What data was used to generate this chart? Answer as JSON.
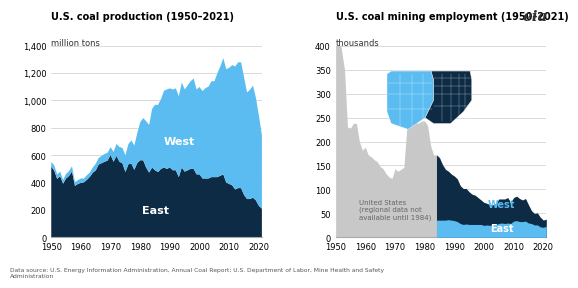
{
  "title1": "U.S. coal production (1950–2021)",
  "ylabel1": "million tons",
  "title2": "U.S. coal mining employment (1950–2021)",
  "ylabel2": "thousands",
  "footnote_normal": "Data source: U.S. Energy Information Administration, ",
  "footnote_italic": "Annual Coal Report",
  "footnote_normal2": "; U.S. Department of Labor, ",
  "footnote_italic2": "Mine Health and Safety",
  "footnote_normal3": "\nAdministration",
  "bg_color": "#ffffff",
  "east_color": "#0d2b45",
  "west_color": "#5abcf0",
  "us_color": "#c8c8c8",
  "years_prod": [
    1950,
    1951,
    1952,
    1953,
    1954,
    1955,
    1956,
    1957,
    1958,
    1959,
    1960,
    1961,
    1962,
    1963,
    1964,
    1965,
    1966,
    1967,
    1968,
    1969,
    1970,
    1971,
    1972,
    1973,
    1974,
    1975,
    1976,
    1977,
    1978,
    1979,
    1980,
    1981,
    1982,
    1983,
    1984,
    1985,
    1986,
    1987,
    1988,
    1989,
    1990,
    1991,
    1992,
    1993,
    1994,
    1995,
    1996,
    1997,
    1998,
    1999,
    2000,
    2001,
    2002,
    2003,
    2004,
    2005,
    2006,
    2007,
    2008,
    2009,
    2010,
    2011,
    2012,
    2013,
    2014,
    2015,
    2016,
    2017,
    2018,
    2019,
    2020,
    2021
  ],
  "east_prod": [
    516,
    488,
    427,
    447,
    392,
    430,
    449,
    481,
    376,
    390,
    398,
    402,
    420,
    442,
    472,
    489,
    532,
    542,
    552,
    561,
    602,
    552,
    595,
    552,
    541,
    477,
    533,
    540,
    493,
    543,
    563,
    563,
    510,
    473,
    510,
    490,
    477,
    500,
    510,
    500,
    510,
    490,
    490,
    440,
    510,
    480,
    490,
    500,
    500,
    460,
    460,
    430,
    430,
    430,
    440,
    440,
    440,
    450,
    460,
    400,
    390,
    380,
    350,
    360,
    360,
    310,
    280,
    280,
    290,
    270,
    230,
    210
  ],
  "west_prod": [
    35,
    38,
    32,
    33,
    28,
    33,
    35,
    38,
    27,
    28,
    32,
    28,
    33,
    32,
    38,
    48,
    48,
    53,
    57,
    57,
    57,
    72,
    87,
    108,
    112,
    122,
    148,
    168,
    178,
    218,
    278,
    308,
    338,
    348,
    428,
    478,
    490,
    510,
    560,
    580,
    578,
    590,
    598,
    590,
    620,
    600,
    620,
    640,
    660,
    620,
    638,
    638,
    660,
    670,
    700,
    700,
    758,
    798,
    848,
    828,
    848,
    878,
    898,
    918,
    918,
    858,
    778,
    798,
    818,
    748,
    658,
    538
  ],
  "years_emp": [
    1950,
    1951,
    1952,
    1953,
    1954,
    1955,
    1956,
    1957,
    1958,
    1959,
    1960,
    1961,
    1962,
    1963,
    1964,
    1965,
    1966,
    1967,
    1968,
    1969,
    1970,
    1971,
    1972,
    1973,
    1974,
    1975,
    1976,
    1977,
    1978,
    1979,
    1980,
    1981,
    1982,
    1983,
    1984,
    1985,
    1986,
    1987,
    1988,
    1989,
    1990,
    1991,
    1992,
    1993,
    1994,
    1995,
    1996,
    1997,
    1998,
    1999,
    2000,
    2001,
    2002,
    2003,
    2004,
    2005,
    2006,
    2007,
    2008,
    2009,
    2010,
    2011,
    2012,
    2013,
    2014,
    2015,
    2016,
    2017,
    2018,
    2019,
    2020,
    2021
  ],
  "us_emp": [
    483,
    430,
    390,
    350,
    230,
    228,
    238,
    238,
    200,
    182,
    188,
    172,
    168,
    162,
    158,
    148,
    143,
    133,
    126,
    123,
    143,
    138,
    142,
    146,
    228,
    248,
    243,
    240,
    238,
    243,
    243,
    233,
    192,
    172,
    172,
    168,
    152,
    142,
    138,
    132,
    128,
    122,
    108,
    102,
    102,
    95,
    90,
    88,
    83,
    78,
    73,
    71,
    68,
    68,
    70,
    80,
    80,
    80,
    83,
    73,
    83,
    86,
    81,
    78,
    81,
    68,
    54,
    50,
    51,
    42,
    36,
    38
  ],
  "east_emp": [
    0,
    0,
    0,
    0,
    0,
    0,
    0,
    0,
    0,
    0,
    0,
    0,
    0,
    0,
    0,
    0,
    0,
    0,
    0,
    0,
    0,
    0,
    0,
    0,
    0,
    0,
    0,
    0,
    0,
    0,
    0,
    0,
    0,
    0,
    136,
    130,
    116,
    106,
    101,
    96,
    93,
    89,
    79,
    75,
    74,
    68,
    63,
    61,
    56,
    51,
    48,
    45,
    43,
    42,
    43,
    51,
    50,
    51,
    53,
    44,
    49,
    51,
    48,
    45,
    47,
    38,
    27,
    24,
    25,
    20,
    15,
    15
  ],
  "west_emp": [
    0,
    0,
    0,
    0,
    0,
    0,
    0,
    0,
    0,
    0,
    0,
    0,
    0,
    0,
    0,
    0,
    0,
    0,
    0,
    0,
    0,
    0,
    0,
    0,
    0,
    0,
    0,
    0,
    0,
    0,
    0,
    0,
    0,
    0,
    36,
    36,
    36,
    36,
    37,
    36,
    35,
    33,
    29,
    27,
    28,
    27,
    27,
    27,
    27,
    27,
    25,
    26,
    25,
    26,
    27,
    29,
    30,
    29,
    30,
    29,
    34,
    35,
    33,
    33,
    34,
    30,
    29,
    26,
    26,
    22,
    21,
    23
  ],
  "prod_ylim": [
    0,
    1400
  ],
  "emp_ylim": [
    0,
    400
  ],
  "prod_yticks": [
    0,
    200,
    400,
    600,
    800,
    1000,
    1200,
    1400
  ],
  "emp_yticks": [
    0,
    50,
    100,
    150,
    200,
    250,
    300,
    350,
    400
  ],
  "xticks": [
    1950,
    1960,
    1970,
    1980,
    1990,
    2000,
    2010,
    2020
  ]
}
